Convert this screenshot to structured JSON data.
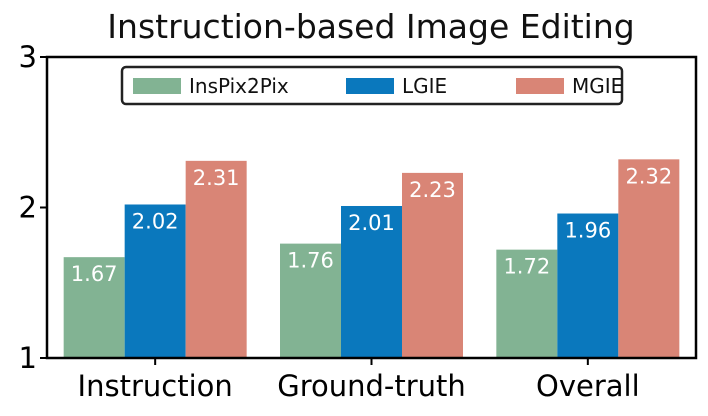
{
  "chart_data": {
    "type": "bar",
    "title": "Instruction-based Image Editing",
    "categories": [
      "Instruction",
      "Ground-truth",
      "Overall"
    ],
    "series": [
      {
        "name": "InsPix2Pix",
        "color": "#82b393",
        "values": [
          1.67,
          1.76,
          1.72
        ],
        "labels": [
          "1.67",
          "1.76",
          "1.72"
        ]
      },
      {
        "name": "LGIE",
        "color": "#0a78bd",
        "values": [
          2.02,
          2.01,
          1.96
        ],
        "labels": [
          "2.02",
          "2.01",
          "1.96"
        ]
      },
      {
        "name": "MGIE",
        "color": "#d98576",
        "values": [
          2.31,
          2.23,
          2.32
        ],
        "labels": [
          "2.31",
          "2.23",
          "2.32"
        ]
      }
    ],
    "yticks": [
      "1",
      "2",
      "3"
    ],
    "ylim": [
      1,
      3
    ],
    "legend": "top-center",
    "grid": false
  }
}
